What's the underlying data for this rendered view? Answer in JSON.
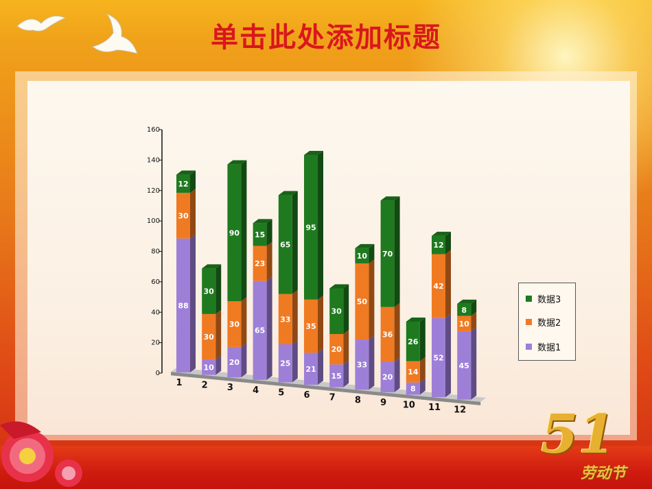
{
  "slide": {
    "title": "单击此处添加标题",
    "badge_number": "51",
    "badge_text": "劳动节"
  },
  "colors": {
    "series1": "#9e7fd8",
    "series2": "#f07a22",
    "series3": "#1f7a1f",
    "title": "#d9171d"
  },
  "chart_data": {
    "type": "bar",
    "stacked": true,
    "three_d": true,
    "categories": [
      "1",
      "2",
      "3",
      "4",
      "5",
      "6",
      "7",
      "8",
      "9",
      "10",
      "11",
      "12"
    ],
    "series": [
      {
        "name": "数据1",
        "values": [
          88,
          10,
          20,
          65,
          25,
          21,
          15,
          33,
          20,
          8,
          52,
          45
        ]
      },
      {
        "name": "数据2",
        "values": [
          30,
          30,
          30,
          23,
          33,
          35,
          20,
          50,
          36,
          14,
          42,
          10
        ]
      },
      {
        "name": "数据3",
        "values": [
          12,
          30,
          90,
          15,
          65,
          95,
          30,
          10,
          70,
          26,
          12,
          8
        ]
      }
    ],
    "ylim": [
      0,
      160
    ],
    "yticks": [
      0,
      20,
      40,
      60,
      80,
      100,
      120,
      140,
      160
    ],
    "legend_position": "right",
    "data_labels": true
  }
}
